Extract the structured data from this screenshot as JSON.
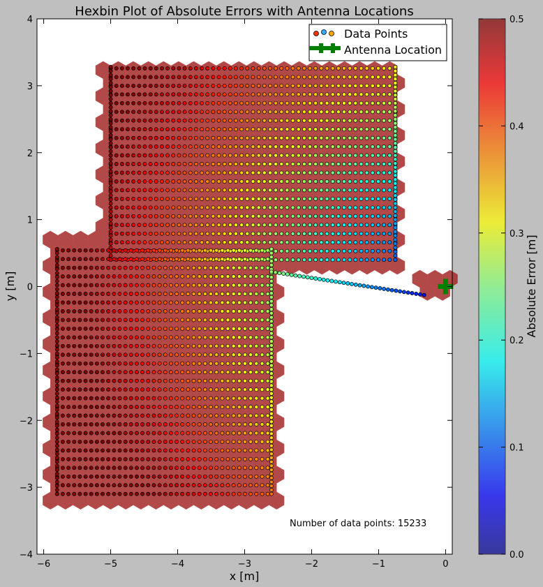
{
  "chart_data": {
    "type": "scatter",
    "title": "Hexbin Plot of Absolute Errors with Antenna Locations",
    "xlabel": "x [m]",
    "ylabel": "y [m]",
    "xlim": [
      -6.1,
      0.1
    ],
    "ylim": [
      -4,
      4
    ],
    "xticks": [
      -6,
      -5,
      -4,
      -3,
      -2,
      -1,
      0
    ],
    "yticks": [
      -4,
      -3,
      -2,
      -1,
      0,
      1,
      2,
      3,
      4
    ],
    "xtick_labels": [
      "−6",
      "−5",
      "−4",
      "−3",
      "−2",
      "−1",
      "0"
    ],
    "ytick_labels": [
      "−4",
      "−3",
      "−2",
      "−1",
      "0",
      "1",
      "2",
      "3",
      "4"
    ],
    "grid": false,
    "legend": {
      "position": "top-right",
      "entries": [
        {
          "label": "Data Points",
          "marker": "circle"
        },
        {
          "label": "Antenna Location",
          "marker": "plus",
          "color": "#008000"
        }
      ]
    },
    "colorbar": {
      "label": "Absolute Error [m]",
      "min": 0.0,
      "max": 0.5,
      "ticks": [
        0.0,
        0.1,
        0.2,
        0.3,
        0.4,
        0.5
      ],
      "tick_labels": [
        "0.0",
        "0.1",
        "0.2",
        "0.3",
        "0.4",
        "0.5"
      ],
      "colormap": "jet"
    },
    "annotation": "Number of data points: 15233",
    "antenna": {
      "x": 0.0,
      "y": 0.0
    },
    "hex_background_color": "#a52a2a",
    "regions": [
      {
        "name": "upper",
        "x_range": [
          -5.0,
          -0.75
        ],
        "y_range": [
          0.4,
          3.3
        ],
        "row_spacing": 0.13
      },
      {
        "name": "lower",
        "x_range": [
          -5.8,
          -2.6
        ],
        "y_range": [
          -3.1,
          0.6
        ],
        "row_spacing": 0.13
      }
    ],
    "points_total": 15233
  }
}
